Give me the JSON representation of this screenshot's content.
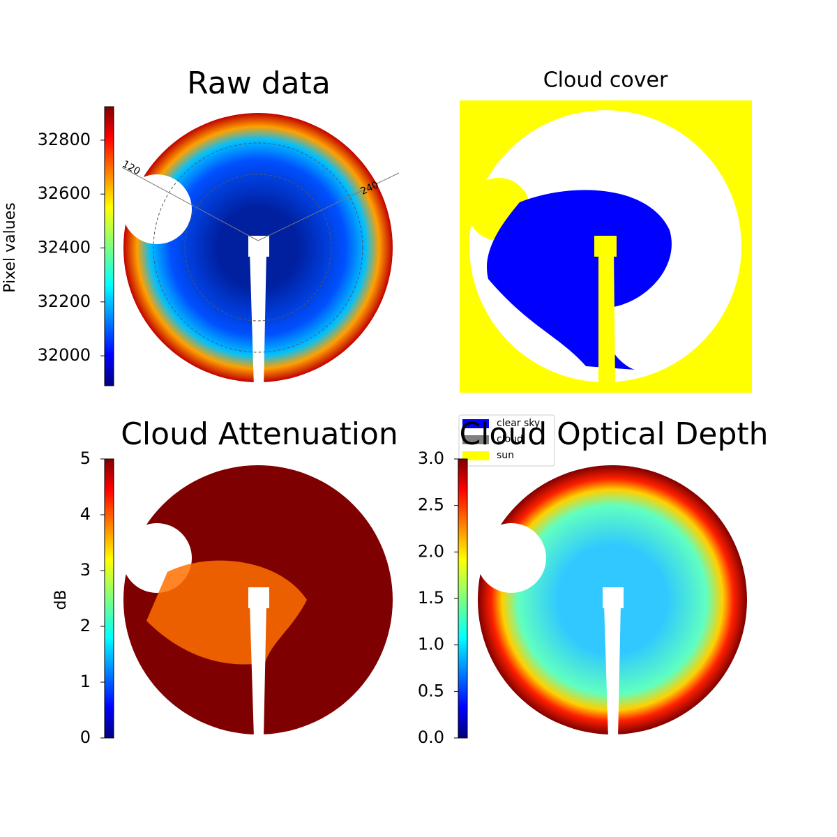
{
  "chart_data": [
    {
      "type": "image",
      "title": "Raw data",
      "colormap": "jet",
      "ylabel": "Pixel values",
      "ylim": [
        31889,
        32924
      ],
      "yticks": [
        32000,
        32200,
        32400,
        32600,
        32800
      ],
      "polar_labels": [
        "120",
        "240"
      ]
    },
    {
      "type": "image",
      "title": "Cloud cover",
      "legend": [
        {
          "name": "clear sky",
          "color": "#0000ff"
        },
        {
          "name": "cloud",
          "color": "#808080"
        },
        {
          "name": "sun",
          "color": "#ffff00"
        }
      ]
    },
    {
      "type": "image",
      "title": "Cloud Attenuation",
      "colormap": "jet",
      "ylabel": "dB",
      "ylim": [
        0,
        5
      ],
      "yticks": [
        0,
        1,
        2,
        3,
        4,
        5
      ]
    },
    {
      "type": "image",
      "title": "Cloud Optical Depth",
      "colormap": "jet",
      "ylim": [
        0,
        3
      ],
      "yticks": [
        {
          "value": 0,
          "label": "0.0"
        },
        0.5,
        {
          "value": 1,
          "label": "1.0"
        },
        1.5,
        {
          "value": 2,
          "label": "2.0"
        },
        2.5,
        {
          "value": 3,
          "label": "3.0"
        }
      ]
    }
  ]
}
